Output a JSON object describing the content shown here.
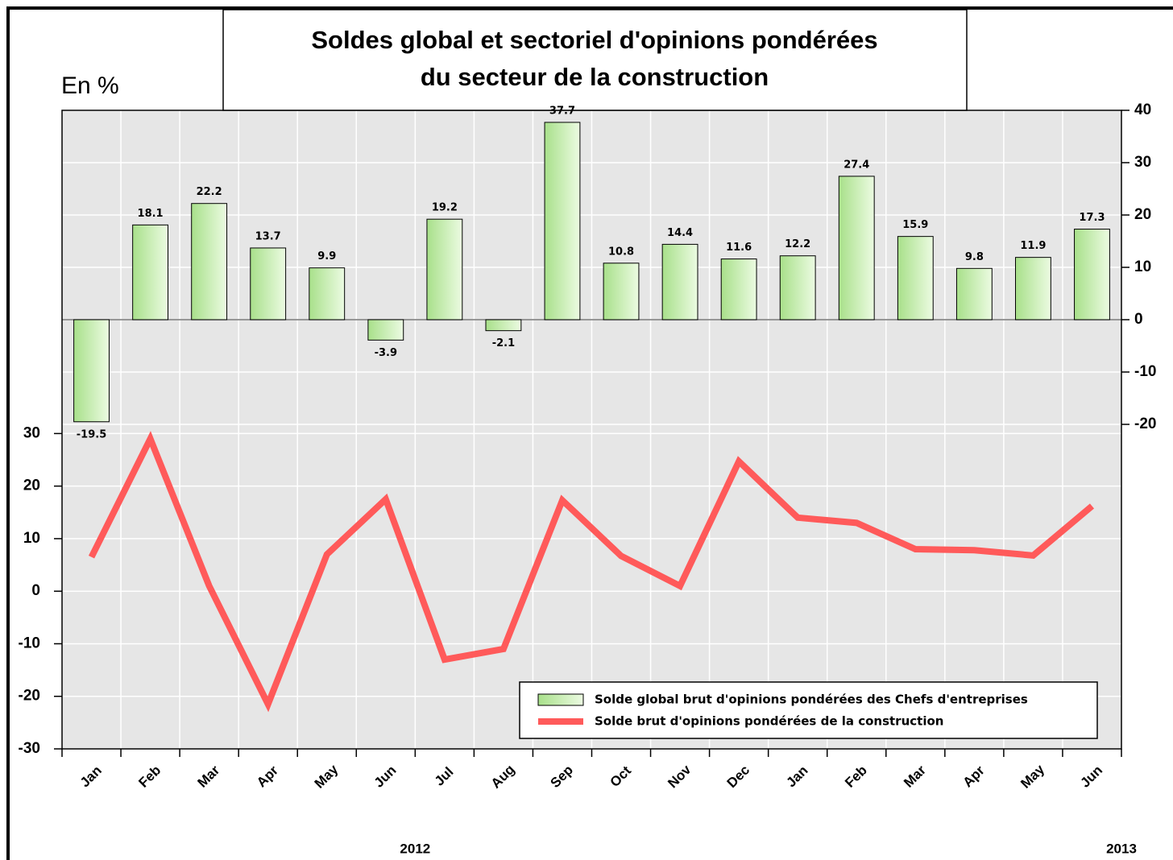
{
  "chart_data": {
    "type": "bar",
    "title": [
      "Soldes global et sectoriel d'opinions pondérées",
      "du secteur de la construction"
    ],
    "ylabel": "En %",
    "categories": [
      "Jan",
      "Feb",
      "Mar",
      "Apr",
      "May",
      "Jun",
      "Jul",
      "Aug",
      "Sep",
      "Oct",
      "Nov",
      "Dec",
      "Jan",
      "Feb",
      "Mar",
      "Apr",
      "May",
      "Jun"
    ],
    "years": [
      "2012",
      "2013"
    ],
    "series": [
      {
        "name": "Solde global brut d'opinions pondérées des Chefs d'entreprises",
        "type": "bar",
        "axis": "y2",
        "color": "#a8e08a",
        "values": [
          -19.5,
          18.1,
          22.2,
          13.7,
          9.9,
          -3.9,
          19.2,
          -2.1,
          37.7,
          10.8,
          14.4,
          11.6,
          12.2,
          27.4,
          15.9,
          9.8,
          11.9,
          17.3
        ]
      },
      {
        "name": "Solde brut d'opinions pondérées de la construction",
        "type": "line",
        "color": "#ff5a5a",
        "values": [
          6.5,
          29,
          1,
          -21.5,
          7,
          17.5,
          -13,
          -11,
          17.3,
          6.7,
          1,
          24.7,
          14,
          13,
          8,
          7.8,
          6.8,
          16.2
        ]
      }
    ],
    "ylim": [
      -30,
      91.5
    ],
    "yticks": [
      -30,
      -20,
      -10,
      0,
      10,
      20,
      30
    ],
    "y2lim": [
      -82,
      40
    ],
    "y2ticks": [
      -20,
      -10,
      0,
      10,
      20,
      30,
      40
    ],
    "grid": true,
    "legend": "lower right"
  }
}
